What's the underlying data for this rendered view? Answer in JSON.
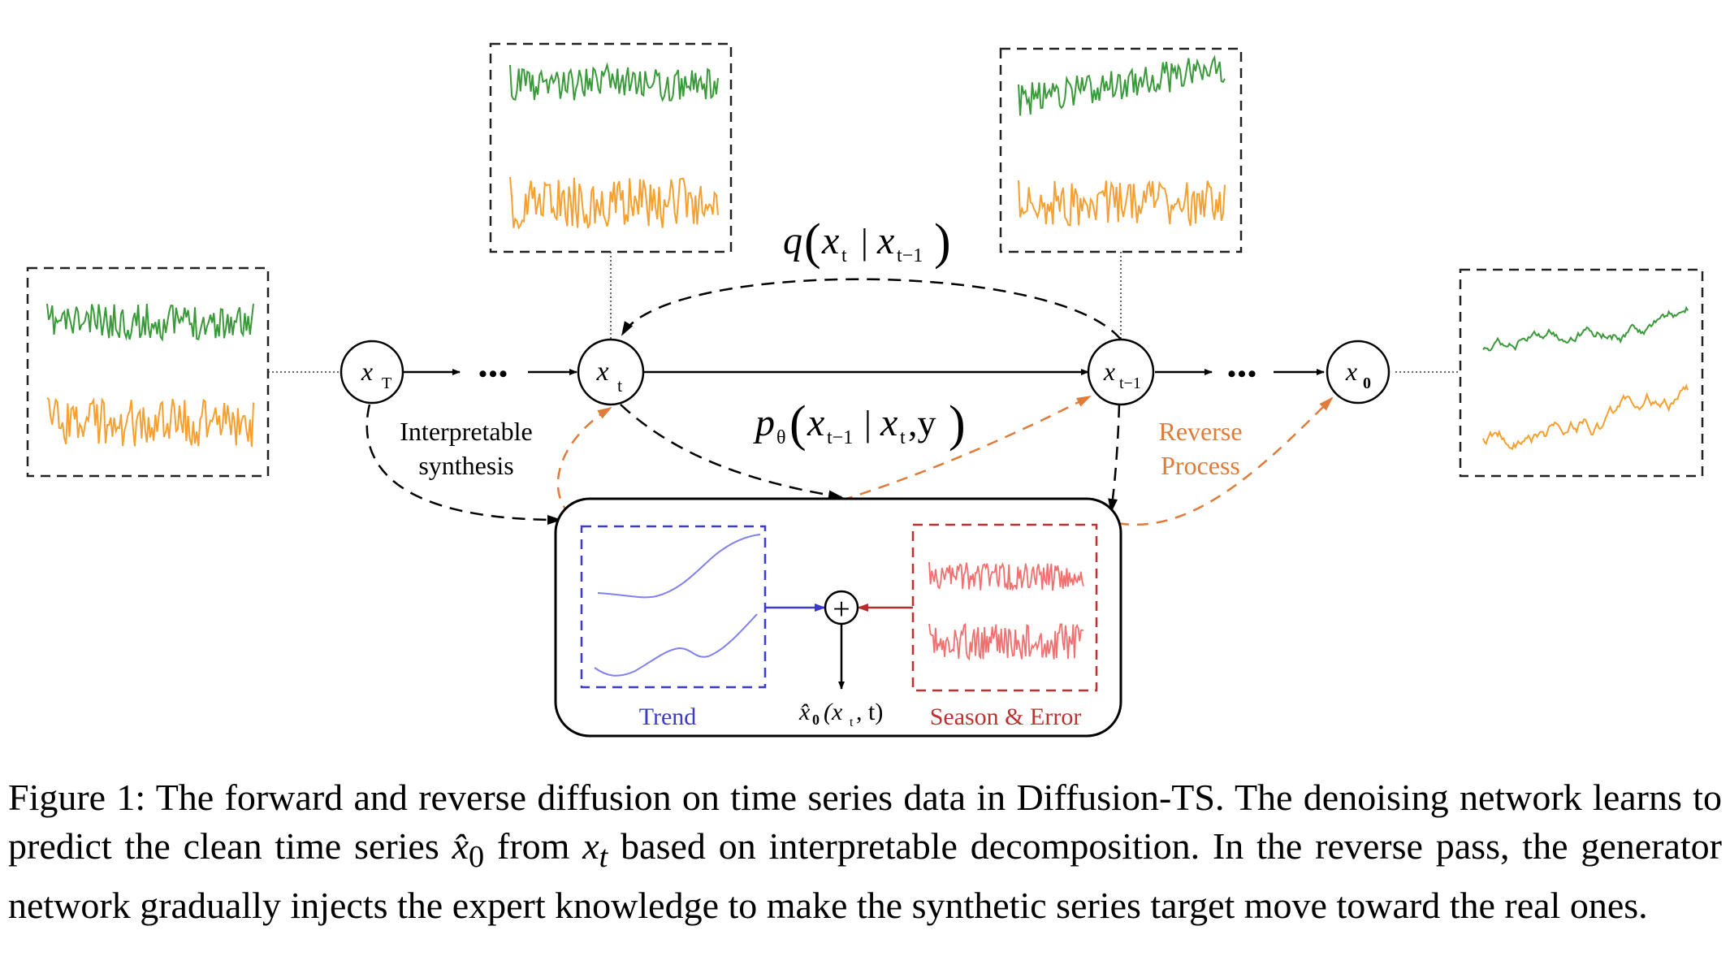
{
  "figure": {
    "nodes": {
      "xT": {
        "main": "x",
        "sub": "T"
      },
      "xt": {
        "main": "x",
        "sub": "t"
      },
      "xt1": {
        "main": "x",
        "sub": "t−1"
      },
      "x0": {
        "main": "x",
        "sub": "0"
      }
    },
    "ellipsis": "•••",
    "forward_label": {
      "p1": "q",
      "p2": "x",
      "p3": "t",
      "p4": "|",
      "p5": "x",
      "p6": "t−1"
    },
    "reverse_label": {
      "p1": "p",
      "p2": "θ",
      "p3": "x",
      "p4": "t−1",
      "p5": "|",
      "p6": "x",
      "p7": "t",
      "p8": ",y"
    },
    "interpretable_line1": "Interpretable",
    "interpretable_line2": "synthesis",
    "reverse_process_line1": "Reverse",
    "reverse_process_line2": "Process",
    "trend_label": "Trend",
    "season_label": "Season & Error",
    "output_label": {
      "hat": "x̂",
      "zero": "0",
      "args": "(x",
      "t": "t",
      "close": ", t)"
    },
    "plus_symbol": "+",
    "colors": {
      "green": "#3a9a3a",
      "orange": "#f5a030",
      "trend_blue": "#3a3ad0",
      "trend_line": "#8080f0",
      "season_red": "#c03030",
      "season_line": "#f07070",
      "reverse_orange": "#e07b39"
    }
  },
  "caption": {
    "lead": "Figure 1:  The forward and reverse diffusion on time series data in Diffusion-TS. The denoising network learns to predict the clean time series ",
    "x0hat": "x̂",
    "x0sub": "0",
    "mid": " from ",
    "xt": "x",
    "xtsub": "t",
    "tail": " based on interpretable decomposition. In the reverse pass, the generator network gradually injects the expert knowledge to make the synthetic series target move toward the real ones."
  }
}
